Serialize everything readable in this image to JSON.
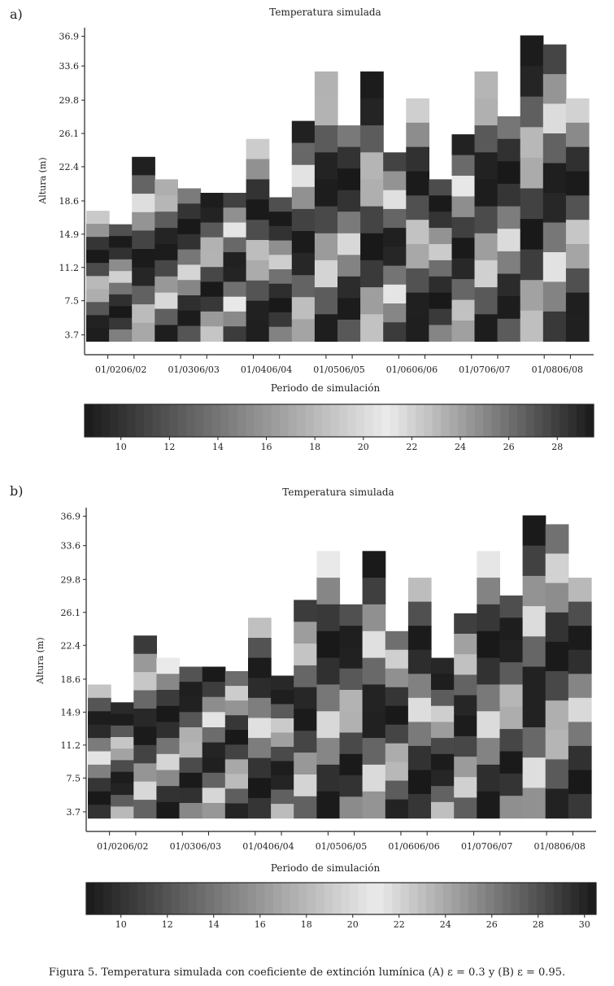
{
  "caption": "Figura 5. Temperatura simulada con coeficiente de extinción lumínica (A) ε = 0.3 y (B) ε = 0.95.",
  "chart_data": [
    {
      "type": "heatmap",
      "panel": "a)",
      "title": "Temperatura simulada",
      "ylabel": "Altura (m)",
      "xlabel": "Periodo de simulación",
      "y_ticks": [
        "36.9",
        "33.6",
        "29.8",
        "26.1",
        "22.4",
        "18.6",
        "14.9",
        "11.2",
        "7.5",
        "3.7"
      ],
      "x_ticks": [
        "01/0206/02",
        "01/0306/03",
        "01/0406/04",
        "01/0506/05",
        "01/0606/06",
        "01/0706/07",
        "01/0806/08"
      ],
      "colorbar_ticks": [
        "10",
        "12",
        "14",
        "16",
        "18",
        "20",
        "22",
        "24",
        "26",
        "28"
      ],
      "colorbar_range": [
        8.5,
        29.5
      ],
      "ylim": [
        1.5,
        37.5
      ],
      "column_heights": [
        17.5,
        16,
        23.5,
        21,
        20,
        19.5,
        19.5,
        25.5,
        19,
        27.5,
        33,
        27,
        33,
        24,
        30,
        21,
        26,
        33,
        28,
        37,
        36,
        30
      ]
    },
    {
      "type": "heatmap",
      "panel": "b)",
      "title": "Temperatura simulada",
      "ylabel": "Altura (m)",
      "xlabel": "Periodo de simulación",
      "y_ticks": [
        "36.9",
        "33.6",
        "29.8",
        "26.1",
        "22.4",
        "18.6",
        "14.9",
        "11.2",
        "7.5",
        "3.7"
      ],
      "x_ticks": [
        "01/0206/02",
        "01/0306/03",
        "01/0406/04",
        "01/0506/05",
        "01/0606/06",
        "01/0706/07",
        "01/0806/08"
      ],
      "colorbar_ticks": [
        "10",
        "12",
        "14",
        "16",
        "18",
        "20",
        "22",
        "24",
        "26",
        "28",
        "30"
      ],
      "colorbar_range": [
        8.5,
        30.5
      ],
      "ylim": [
        1.5,
        37.5
      ],
      "column_heights": [
        18,
        16,
        23.5,
        21,
        20,
        20,
        19.5,
        25.5,
        19,
        27.5,
        33,
        27,
        33,
        24,
        30,
        21,
        26,
        33,
        28,
        37,
        36,
        30
      ]
    }
  ]
}
